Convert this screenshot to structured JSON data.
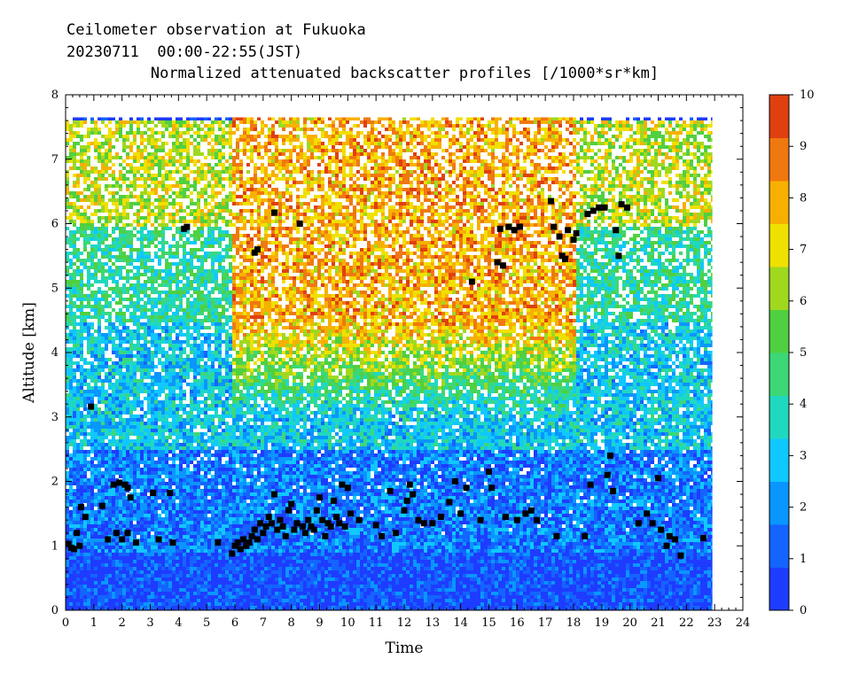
{
  "header": {
    "line1": "Ceilometer observation at Fukuoka",
    "line2": "20230711  00:00-22:55(JST)",
    "line3": "Normalized attenuated backscatter profiles [/1000*sr*km]"
  },
  "chart_data": {
    "type": "heatmap",
    "title": "Normalized attenuated backscatter profiles [/1000*sr*km]",
    "xlabel": "Time",
    "ylabel": "Altitude [km]",
    "xlim": [
      0,
      24
    ],
    "ylim": [
      0,
      8
    ],
    "x_ticks": [
      "0",
      "1",
      "2",
      "3",
      "4",
      "5",
      "6",
      "7",
      "8",
      "9",
      "10",
      "11",
      "12",
      "13",
      "14",
      "15",
      "16",
      "17",
      "18",
      "19",
      "20",
      "21",
      "22",
      "23",
      "24"
    ],
    "y_ticks": [
      "0",
      "1",
      "2",
      "3",
      "4",
      "5",
      "6",
      "7",
      "8"
    ],
    "data_extent": {
      "time_end": 22.92,
      "altitude_top": 7.65
    },
    "colorbar": {
      "min": 0,
      "max": 10,
      "ticks": [
        "0",
        "1",
        "2",
        "3",
        "4",
        "5",
        "6",
        "7",
        "8",
        "9",
        "10"
      ],
      "colors": [
        "#1e3cff",
        "#1464ff",
        "#0a96ff",
        "#10c8ff",
        "#20d8c0",
        "#3cd878",
        "#50d040",
        "#a0d820",
        "#f0e000",
        "#f8b000",
        "#f07810",
        "#e04010"
      ]
    },
    "background_profile": [
      {
        "alt_range": [
          0,
          0.9
        ],
        "level": 0.7
      },
      {
        "alt_range": [
          0.9,
          2.5
        ],
        "level": 1.6
      },
      {
        "alt_range": [
          2.5,
          4.5
        ],
        "level": 3.0
      },
      {
        "alt_range": [
          4.5,
          6.0
        ],
        "level": 4.2
      },
      {
        "alt_range": [
          6.0,
          7.65
        ],
        "level": 6.5
      }
    ],
    "high_noise_region": {
      "time_range": [
        5.8,
        18.0
      ],
      "alt_range": [
        3.0,
        7.65
      ],
      "level": 8.0
    },
    "cloud_base_detections": [
      [
        0.1,
        1.03
      ],
      [
        0.2,
        0.97
      ],
      [
        0.3,
        0.95
      ],
      [
        0.4,
        1.2
      ],
      [
        0.5,
        1.0
      ],
      [
        0.55,
        1.6
      ],
      [
        0.7,
        1.45
      ],
      [
        0.9,
        3.16
      ],
      [
        1.3,
        1.62
      ],
      [
        1.5,
        1.1
      ],
      [
        1.7,
        1.95
      ],
      [
        1.8,
        1.2
      ],
      [
        1.9,
        1.98
      ],
      [
        2.0,
        1.1
      ],
      [
        2.1,
        1.95
      ],
      [
        2.2,
        1.9
      ],
      [
        2.3,
        1.75
      ],
      [
        2.2,
        1.2
      ],
      [
        2.5,
        1.05
      ],
      [
        3.1,
        1.82
      ],
      [
        3.3,
        1.1
      ],
      [
        3.7,
        1.82
      ],
      [
        3.8,
        1.05
      ],
      [
        4.2,
        5.92
      ],
      [
        4.3,
        5.95
      ],
      [
        5.4,
        1.05
      ],
      [
        5.9,
        0.88
      ],
      [
        6.0,
        1.0
      ],
      [
        6.1,
        1.05
      ],
      [
        6.2,
        0.95
      ],
      [
        6.3,
        1.1
      ],
      [
        6.4,
        1.0
      ],
      [
        6.5,
        1.05
      ],
      [
        6.6,
        1.15
      ],
      [
        6.7,
        1.25
      ],
      [
        6.7,
        5.55
      ],
      [
        6.8,
        5.6
      ],
      [
        6.8,
        1.1
      ],
      [
        6.9,
        1.35
      ],
      [
        7.0,
        1.2
      ],
      [
        7.1,
        1.3
      ],
      [
        7.2,
        1.45
      ],
      [
        7.3,
        1.35
      ],
      [
        7.4,
        1.8
      ],
      [
        7.4,
        6.17
      ],
      [
        7.5,
        1.25
      ],
      [
        7.6,
        1.4
      ],
      [
        7.7,
        1.3
      ],
      [
        7.8,
        1.15
      ],
      [
        7.9,
        1.55
      ],
      [
        8.0,
        1.65
      ],
      [
        8.1,
        1.25
      ],
      [
        8.2,
        1.35
      ],
      [
        8.3,
        6.0
      ],
      [
        8.4,
        1.3
      ],
      [
        8.5,
        1.2
      ],
      [
        8.6,
        1.4
      ],
      [
        8.7,
        1.3
      ],
      [
        8.8,
        1.25
      ],
      [
        8.9,
        1.55
      ],
      [
        9.0,
        1.75
      ],
      [
        9.1,
        1.4
      ],
      [
        9.2,
        1.15
      ],
      [
        9.3,
        1.35
      ],
      [
        9.4,
        1.3
      ],
      [
        9.5,
        1.7
      ],
      [
        9.6,
        1.45
      ],
      [
        9.7,
        1.35
      ],
      [
        9.8,
        1.95
      ],
      [
        9.9,
        1.3
      ],
      [
        10.0,
        1.9
      ],
      [
        10.1,
        1.5
      ],
      [
        10.4,
        1.4
      ],
      [
        11.0,
        1.32
      ],
      [
        11.2,
        1.15
      ],
      [
        11.5,
        1.85
      ],
      [
        11.7,
        1.2
      ],
      [
        12.0,
        1.55
      ],
      [
        12.1,
        1.7
      ],
      [
        12.2,
        1.95
      ],
      [
        12.3,
        1.8
      ],
      [
        12.5,
        1.4
      ],
      [
        12.7,
        1.35
      ],
      [
        13.0,
        1.35
      ],
      [
        13.3,
        1.45
      ],
      [
        13.6,
        1.68
      ],
      [
        13.8,
        2.0
      ],
      [
        14.0,
        1.5
      ],
      [
        14.2,
        1.9
      ],
      [
        14.4,
        5.1
      ],
      [
        14.7,
        1.4
      ],
      [
        15.0,
        2.15
      ],
      [
        15.1,
        1.9
      ],
      [
        15.3,
        5.4
      ],
      [
        15.4,
        5.92
      ],
      [
        15.5,
        5.35
      ],
      [
        15.6,
        1.45
      ],
      [
        15.7,
        5.95
      ],
      [
        15.9,
        5.9
      ],
      [
        16.0,
        1.4
      ],
      [
        16.1,
        5.95
      ],
      [
        16.3,
        1.5
      ],
      [
        16.5,
        1.55
      ],
      [
        16.7,
        1.4
      ],
      [
        17.2,
        6.35
      ],
      [
        17.3,
        5.95
      ],
      [
        17.4,
        1.15
      ],
      [
        17.5,
        5.8
      ],
      [
        17.6,
        5.5
      ],
      [
        17.7,
        5.45
      ],
      [
        17.8,
        5.9
      ],
      [
        18.0,
        5.75
      ],
      [
        18.1,
        5.85
      ],
      [
        18.4,
        1.15
      ],
      [
        18.5,
        6.15
      ],
      [
        18.6,
        1.95
      ],
      [
        18.7,
        6.2
      ],
      [
        18.9,
        6.25
      ],
      [
        19.1,
        6.25
      ],
      [
        19.2,
        2.1
      ],
      [
        19.3,
        2.4
      ],
      [
        19.4,
        1.85
      ],
      [
        19.5,
        5.9
      ],
      [
        19.6,
        5.5
      ],
      [
        19.7,
        6.3
      ],
      [
        19.9,
        6.25
      ],
      [
        20.3,
        1.35
      ],
      [
        20.6,
        1.5
      ],
      [
        20.8,
        1.35
      ],
      [
        21.0,
        2.05
      ],
      [
        21.1,
        1.25
      ],
      [
        21.3,
        1.0
      ],
      [
        21.4,
        1.15
      ],
      [
        21.6,
        1.1
      ],
      [
        21.8,
        0.85
      ],
      [
        22.6,
        1.12
      ]
    ]
  }
}
